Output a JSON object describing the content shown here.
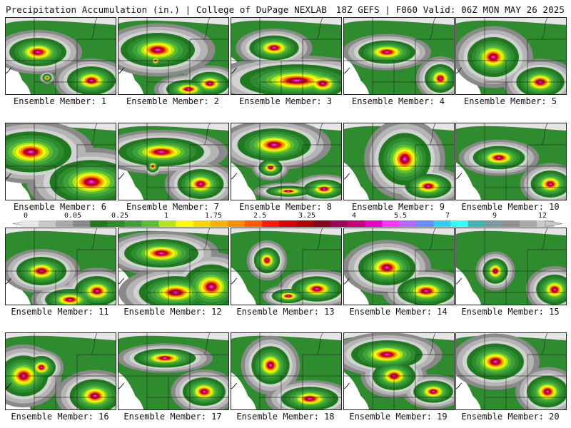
{
  "header": {
    "left": "Precipitation Accumulation (in.) | College of DuPage NEXLAB",
    "right": "18Z GEFS | F060 Valid: 06Z MON MAY 26 2025"
  },
  "colorbar": {
    "tick_labels": [
      "0",
      "0.05",
      "0.25",
      "1",
      "1.75",
      "2.5",
      "3.25",
      "4",
      "5.5",
      "7",
      "9",
      "12"
    ],
    "colors": [
      "#e6e6e6",
      "#c8c8c8",
      "#a8a8a8",
      "#8a8a8a",
      "#1f7a1f",
      "#2e8b2e",
      "#3da23d",
      "#5bbf2f",
      "#b5e61d",
      "#ffff00",
      "#ffd700",
      "#ffb000",
      "#ff8c00",
      "#ff5a00",
      "#ff1a00",
      "#dd0000",
      "#b00000",
      "#8b0020",
      "#a0005a",
      "#c8007a",
      "#e600c8",
      "#ff33ff",
      "#b36bff",
      "#6b8cff",
      "#33ccff",
      "#33ffff",
      "#40b4b4",
      "#7a9aa0",
      "#909090",
      "#a8a8a8",
      "#c8c8c8"
    ]
  },
  "members": [
    {
      "label": "Ensemble Member: 1"
    },
    {
      "label": "Ensemble Member: 2"
    },
    {
      "label": "Ensemble Member: 3"
    },
    {
      "label": "Ensemble Member: 4"
    },
    {
      "label": "Ensemble Member: 5"
    },
    {
      "label": "Ensemble Member: 6"
    },
    {
      "label": "Ensemble Member: 7"
    },
    {
      "label": "Ensemble Member: 8"
    },
    {
      "label": "Ensemble Member: 9"
    },
    {
      "label": "Ensemble Member: 10"
    },
    {
      "label": "Ensemble Member: 11"
    },
    {
      "label": "Ensemble Member: 12"
    },
    {
      "label": "Ensemble Member: 13"
    },
    {
      "label": "Ensemble Member: 14"
    },
    {
      "label": "Ensemble Member: 15"
    },
    {
      "label": "Ensemble Member: 16"
    },
    {
      "label": "Ensemble Member: 17"
    },
    {
      "label": "Ensemble Member: 18"
    },
    {
      "label": "Ensemble Member: 19"
    },
    {
      "label": "Ensemble Member: 20"
    }
  ]
}
